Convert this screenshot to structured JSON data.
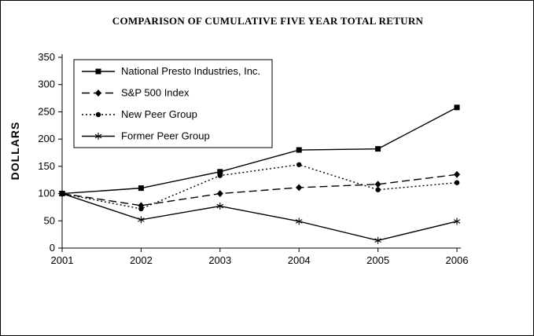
{
  "chart_data": {
    "type": "line",
    "title": "COMPARISON OF CUMULATIVE FIVE YEAR TOTAL RETURN",
    "xlabel": "",
    "ylabel": "DOLLARS",
    "categories": [
      "2001",
      "2002",
      "2003",
      "2004",
      "2005",
      "2006"
    ],
    "y_ticks": [
      0,
      50,
      100,
      150,
      200,
      250,
      300,
      350
    ],
    "ylim": [
      0,
      350
    ],
    "grid": false,
    "legend_position": "top-left-inside",
    "background_color": "#ffffff",
    "axis_color": "#000000",
    "series": [
      {
        "name": "National Presto Industries, Inc.",
        "marker": "square",
        "line_style": "solid",
        "color": "#000000",
        "values": [
          100,
          110,
          140,
          180,
          182,
          258
        ]
      },
      {
        "name": "S&P 500 Index",
        "marker": "diamond",
        "line_style": "dashed",
        "color": "#000000",
        "values": [
          100,
          78,
          100,
          111,
          117,
          135
        ]
      },
      {
        "name": "New Peer Group",
        "marker": "circle",
        "line_style": "dotted",
        "color": "#000000",
        "values": [
          100,
          72,
          133,
          153,
          107,
          120
        ]
      },
      {
        "name": "Former Peer Group",
        "marker": "asterisk",
        "line_style": "solid",
        "color": "#000000",
        "values": [
          100,
          52,
          77,
          49,
          14,
          49
        ]
      }
    ]
  }
}
